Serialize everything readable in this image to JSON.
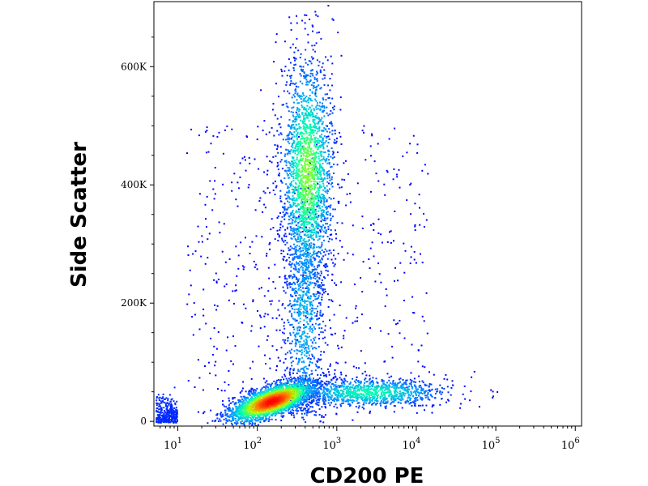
{
  "chart_data": {
    "type": "scatter",
    "title": "",
    "xlabel": "CD200 PE",
    "ylabel": "Side Scatter",
    "x_scale": "log",
    "x_ticks": [
      {
        "value": 10,
        "base": "10",
        "exp": "1"
      },
      {
        "value": 100,
        "base": "10",
        "exp": "2"
      },
      {
        "value": 1000,
        "base": "10",
        "exp": "3"
      },
      {
        "value": 10000,
        "base": "10",
        "exp": "4"
      },
      {
        "value": 100000,
        "base": "10",
        "exp": "5"
      },
      {
        "value": 1000000,
        "base": "10",
        "exp": "6"
      }
    ],
    "y_ticks": [
      {
        "value": 0,
        "label": "0"
      },
      {
        "value": 200000,
        "label": "200K"
      },
      {
        "value": 400000,
        "label": "400K"
      },
      {
        "value": 600000,
        "label": "600K"
      }
    ],
    "xlim": [
      5,
      1200000
    ],
    "ylim": [
      -8000,
      710000
    ],
    "colormap": [
      "#0000ff",
      "#00a0ff",
      "#00ffb0",
      "#b0ff00",
      "#ff8000",
      "#ff0000"
    ],
    "populations": [
      {
        "x_center": 150,
        "y_center": 35000,
        "count": 2600,
        "density": "high"
      },
      {
        "x_center": 420,
        "y_center": 420000,
        "count": 2200,
        "density": "medium"
      },
      {
        "x_center": 380,
        "y_center": 180000,
        "count": 900,
        "density": "low"
      },
      {
        "x_center": 2500,
        "y_center": 50000,
        "count": 1100,
        "density": "medium"
      }
    ]
  }
}
